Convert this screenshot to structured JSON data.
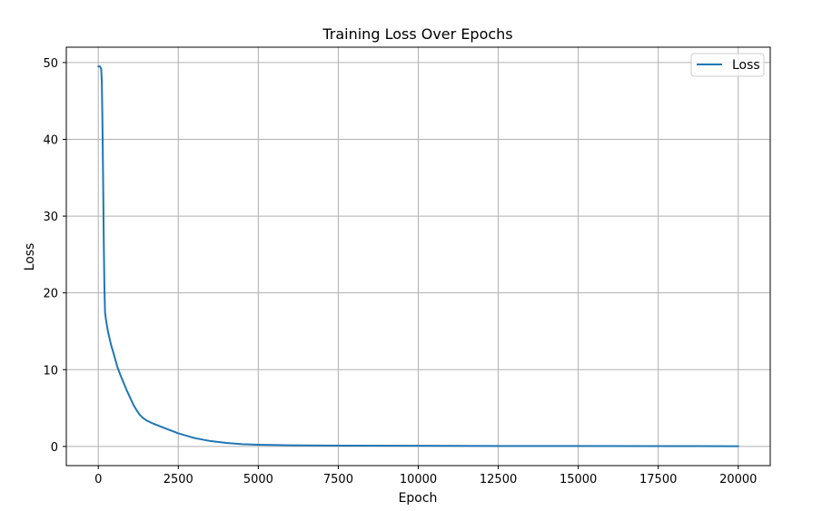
{
  "chart_data": {
    "type": "line",
    "title": "Training Loss Over Epochs",
    "xlabel": "Epoch",
    "ylabel": "Loss",
    "xlim": [
      -1000,
      21000
    ],
    "ylim": [
      -2.5,
      52
    ],
    "x_ticks": [
      0,
      2500,
      5000,
      7500,
      10000,
      12500,
      15000,
      17500,
      20000
    ],
    "y_ticks": [
      0,
      10,
      20,
      30,
      40,
      50
    ],
    "grid": true,
    "legend": {
      "position": "top-right",
      "entries": [
        "Loss"
      ]
    },
    "series": [
      {
        "name": "Loss",
        "color": "#1f77b4",
        "x": [
          0,
          50,
          90,
          110,
          130,
          150,
          170,
          190,
          210,
          240,
          300,
          400,
          500,
          600,
          700,
          800,
          900,
          1000,
          1100,
          1200,
          1300,
          1400,
          1500,
          1700,
          2000,
          2500,
          3000,
          3500,
          4000,
          4500,
          5000,
          6000,
          7000,
          8000,
          10000,
          12500,
          15000,
          17500,
          20000
        ],
        "y": [
          49.5,
          49.5,
          49.2,
          47.5,
          42.0,
          35.0,
          27.0,
          21.0,
          17.5,
          16.5,
          15.0,
          13.2,
          11.8,
          10.3,
          9.2,
          8.2,
          7.2,
          6.3,
          5.4,
          4.7,
          4.1,
          3.7,
          3.4,
          3.0,
          2.5,
          1.7,
          1.1,
          0.7,
          0.45,
          0.3,
          0.22,
          0.15,
          0.12,
          0.1,
          0.08,
          0.06,
          0.05,
          0.04,
          0.03
        ]
      }
    ]
  }
}
